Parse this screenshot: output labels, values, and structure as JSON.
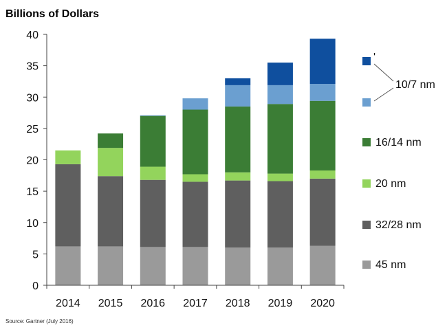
{
  "chart_data": {
    "type": "bar",
    "stacked": true,
    "title": "Billions  of Dollars",
    "xlabel": "",
    "ylabel": "",
    "ylim": [
      0,
      40
    ],
    "yticks": [
      0,
      5,
      10,
      15,
      20,
      25,
      30,
      35,
      40
    ],
    "categories": [
      "2014",
      "2015",
      "2016",
      "2017",
      "2018",
      "2019",
      "2020"
    ],
    "series": [
      {
        "name": "45 nm",
        "color": "#9a9a9a",
        "values": [
          6.2,
          6.2,
          6.1,
          6.1,
          6.0,
          6.0,
          6.3
        ]
      },
      {
        "name": "32/28 nm",
        "color": "#5f5f5f",
        "values": [
          13.1,
          11.2,
          10.7,
          10.4,
          10.7,
          10.6,
          10.7
        ]
      },
      {
        "name": "20 nm",
        "color": "#93d45c",
        "values": [
          2.2,
          4.5,
          2.1,
          1.2,
          1.3,
          1.2,
          1.3
        ]
      },
      {
        "name": "16/14 nm",
        "color": "#3b7d35",
        "values": [
          0,
          2.3,
          8.1,
          10.3,
          10.5,
          11.1,
          11.1
        ]
      },
      {
        "name": "10/7 nm",
        "color": "#6b9fd0",
        "values": [
          0,
          0,
          0.1,
          1.8,
          3.4,
          3.0,
          2.7
        ]
      },
      {
        "name": "",
        "color": "#0f4f9e",
        "values": [
          0,
          0,
          0,
          0,
          1.1,
          3.6,
          7.2
        ]
      }
    ],
    "legend": {
      "placement": "right",
      "entries": [
        "",
        "",
        "16/14 nm",
        "20 nm",
        "32/28 nm",
        "45 nm"
      ],
      "bracket_label": "10/7 nm",
      "stray_mark": "'"
    },
    "source": "Source: Gartner (July 2016)"
  }
}
